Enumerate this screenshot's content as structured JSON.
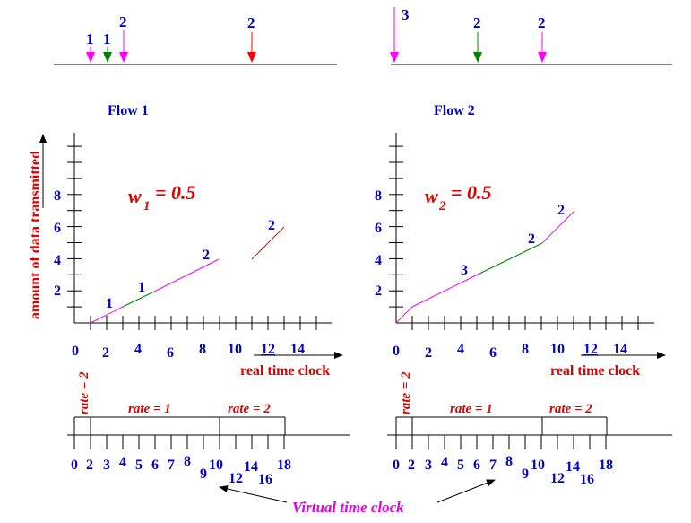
{
  "arrivals": {
    "left": [
      {
        "label": "1",
        "color": "#ff00ff"
      },
      {
        "label": "1",
        "color": "#008000"
      },
      {
        "label": "2",
        "color": "#ff00ff"
      },
      {
        "label": "2",
        "color": "#ff0000"
      }
    ],
    "right": [
      {
        "label": "3",
        "color": "#ff00ff"
      },
      {
        "label": "2",
        "color": "#008000"
      },
      {
        "label": "2",
        "color": "#ff00ff"
      }
    ]
  },
  "flow1": {
    "title": "Flow 1",
    "weight_sym": "w",
    "weight_sub": "1",
    "weight_val": "= 0.5",
    "y_ticks": [
      "2",
      "4",
      "6",
      "8"
    ],
    "x_ticks": [
      "0",
      "2",
      "4",
      "6",
      "8",
      "10",
      "12",
      "14"
    ],
    "seg_labels": [
      "1",
      "1",
      "2",
      "2"
    ]
  },
  "flow2": {
    "title": "Flow 2",
    "weight_sym": "w",
    "weight_sub": "2",
    "weight_val": "= 0.5",
    "y_ticks": [
      "2",
      "4",
      "6",
      "8"
    ],
    "x_ticks": [
      "0",
      "2",
      "4",
      "6",
      "8",
      "10",
      "12",
      "14"
    ],
    "seg_labels": [
      "3",
      "2",
      "2"
    ]
  },
  "y_axis_label": "amount of data transmitted",
  "x_axis_label": "real time clock",
  "rates": {
    "r1": "rate = 2",
    "r2": "rate = 1",
    "r3": "rate = 2"
  },
  "virtual_ticks": [
    "0",
    "2",
    "3",
    "4",
    "5",
    "6",
    "7",
    "8",
    "9",
    "10",
    "12",
    "14",
    "16",
    "18"
  ],
  "virtual_label": "Virtual time clock",
  "colors": {
    "blue": "#0000cc",
    "red": "#e00000",
    "magenta": "#e600e6",
    "green": "#008000"
  }
}
